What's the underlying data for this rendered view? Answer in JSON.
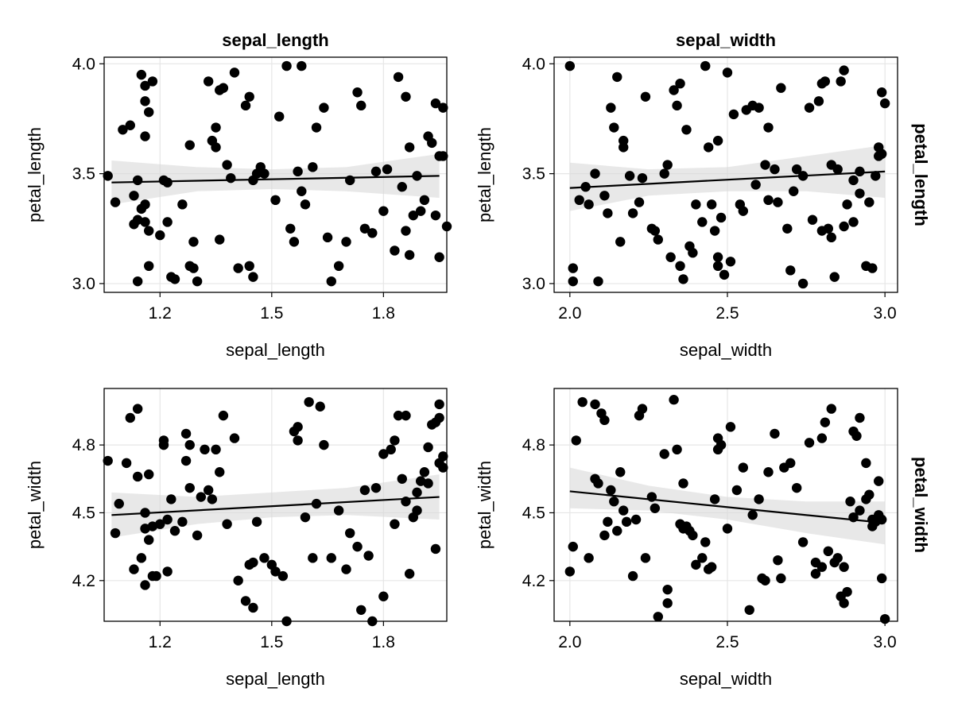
{
  "chart_data": [
    {
      "type": "scatter",
      "panel": "sepal_length-petal_length",
      "col_title": "sepal_length",
      "row_title": "",
      "xlabel": "sepal_length",
      "ylabel": "petal_length",
      "xlim": [
        1.05,
        1.97
      ],
      "ylim": [
        2.96,
        4.03
      ],
      "xticks": [
        1.2,
        1.5,
        1.8
      ],
      "xtick_labels": [
        "1.2",
        "1.5",
        "1.8"
      ],
      "yticks": [
        3.0,
        3.5,
        4.0
      ],
      "ytick_labels": [
        "3.0",
        "3.5",
        "4.0"
      ],
      "grid": true,
      "fit": {
        "x0": 1.07,
        "y0": 3.46,
        "x1": 1.95,
        "y1": 3.49
      },
      "band": [
        {
          "x": 1.07,
          "lo": 3.36,
          "hi": 3.56
        },
        {
          "x": 1.3,
          "lo": 3.42,
          "hi": 3.53
        },
        {
          "x": 1.5,
          "lo": 3.43,
          "hi": 3.52
        },
        {
          "x": 1.7,
          "lo": 3.42,
          "hi": 3.53
        },
        {
          "x": 1.95,
          "lo": 3.39,
          "hi": 3.59
        }
      ],
      "x": [
        1.06,
        1.08,
        1.1,
        1.12,
        1.14,
        1.16,
        1.17,
        1.18,
        1.15,
        1.16,
        1.15,
        1.16,
        1.17,
        1.13,
        1.13,
        1.14,
        1.17,
        1.16,
        1.16,
        1.14,
        1.2,
        1.21,
        1.22,
        1.22,
        1.23,
        1.24,
        1.26,
        1.28,
        1.29,
        1.3,
        1.29,
        1.28,
        1.33,
        1.35,
        1.34,
        1.35,
        1.36,
        1.37,
        1.39,
        1.36,
        1.38,
        1.4,
        1.41,
        1.43,
        1.44,
        1.45,
        1.46,
        1.44,
        1.45,
        1.47,
        1.48,
        1.51,
        1.52,
        1.54,
        1.55,
        1.56,
        1.57,
        1.59,
        1.58,
        1.58,
        1.61,
        1.62,
        1.64,
        1.65,
        1.66,
        1.68,
        1.7,
        1.71,
        1.73,
        1.74,
        1.75,
        1.77,
        1.78,
        1.8,
        1.81,
        1.83,
        1.84,
        1.86,
        1.87,
        1.86,
        1.85,
        1.87,
        1.88,
        1.89,
        1.9,
        1.91,
        1.92,
        1.93,
        1.94,
        1.94,
        1.95,
        1.96,
        1.96,
        1.97,
        1.95
      ],
      "y": [
        3.49,
        3.37,
        3.7,
        3.72,
        3.47,
        3.36,
        3.08,
        3.92,
        3.95,
        3.9,
        3.34,
        3.28,
        3.24,
        3.4,
        3.27,
        3.29,
        3.78,
        3.67,
        3.83,
        3.01,
        3.22,
        3.47,
        3.46,
        3.28,
        3.03,
        3.02,
        3.36,
        3.08,
        3.07,
        3.01,
        3.19,
        3.63,
        3.92,
        3.71,
        3.65,
        3.62,
        3.2,
        3.89,
        3.48,
        3.88,
        3.54,
        3.96,
        3.07,
        3.81,
        3.08,
        3.03,
        3.5,
        3.85,
        3.47,
        3.53,
        3.5,
        3.38,
        3.76,
        3.99,
        3.25,
        3.19,
        3.51,
        3.36,
        3.42,
        3.99,
        3.53,
        3.71,
        3.8,
        3.21,
        3.01,
        3.08,
        3.19,
        3.47,
        3.87,
        3.81,
        3.25,
        3.23,
        3.51,
        3.33,
        3.52,
        3.15,
        3.94,
        3.24,
        3.13,
        3.85,
        3.44,
        3.62,
        3.31,
        3.49,
        3.33,
        3.38,
        3.67,
        3.64,
        3.82,
        3.31,
        3.58,
        3.8,
        3.58,
        3.26,
        3.12
      ]
    },
    {
      "type": "scatter",
      "panel": "sepal_width-petal_length",
      "col_title": "sepal_width",
      "row_title": "petal_length",
      "xlabel": "sepal_width",
      "ylabel": "petal_length",
      "xlim": [
        1.95,
        3.04
      ],
      "ylim": [
        2.96,
        4.03
      ],
      "xticks": [
        2.0,
        2.5,
        3.0
      ],
      "xtick_labels": [
        "2.0",
        "2.5",
        "3.0"
      ],
      "yticks": [
        3.0,
        3.5,
        4.0
      ],
      "ytick_labels": [
        "3.0",
        "3.5",
        "4.0"
      ],
      "grid": true,
      "fit": {
        "x0": 2.0,
        "y0": 3.435,
        "x1": 3.0,
        "y1": 3.51
      },
      "band": [
        {
          "x": 2.0,
          "lo": 3.33,
          "hi": 3.55
        },
        {
          "x": 2.25,
          "lo": 3.4,
          "hi": 3.52
        },
        {
          "x": 2.5,
          "lo": 3.42,
          "hi": 3.53
        },
        {
          "x": 2.75,
          "lo": 3.42,
          "hi": 3.58
        },
        {
          "x": 3.0,
          "lo": 3.39,
          "hi": 3.63
        }
      ],
      "x": [
        2.0,
        2.01,
        2.01,
        2.03,
        2.05,
        2.06,
        2.08,
        2.09,
        2.11,
        2.12,
        2.13,
        2.14,
        2.15,
        2.17,
        2.16,
        2.17,
        2.19,
        2.2,
        2.22,
        2.23,
        2.24,
        2.26,
        2.27,
        2.28,
        2.3,
        2.31,
        2.32,
        2.33,
        2.34,
        2.35,
        2.35,
        2.36,
        2.37,
        2.38,
        2.39,
        2.4,
        2.43,
        2.44,
        2.45,
        2.46,
        2.47,
        2.47,
        2.48,
        2.49,
        2.5,
        2.52,
        2.54,
        2.56,
        2.58,
        2.6,
        2.62,
        2.63,
        2.65,
        2.67,
        2.69,
        2.7,
        2.72,
        2.74,
        2.76,
        2.79,
        2.8,
        2.81,
        2.82,
        2.83,
        2.84,
        2.85,
        2.86,
        2.87,
        2.88,
        2.9,
        2.92,
        2.94,
        2.96,
        2.98,
        2.99,
        3.0,
        2.99,
        2.98,
        2.97,
        2.95,
        2.92,
        2.9,
        2.87,
        2.83,
        2.8,
        2.77,
        2.74,
        2.71,
        2.66,
        2.63,
        2.59,
        2.55,
        2.51,
        2.47,
        2.42
      ],
      "y": [
        3.99,
        3.01,
        3.07,
        3.38,
        3.44,
        3.36,
        3.5,
        3.01,
        3.4,
        3.32,
        3.8,
        3.71,
        3.94,
        3.65,
        3.19,
        3.62,
        3.49,
        3.32,
        3.37,
        3.48,
        3.85,
        3.25,
        3.24,
        3.2,
        3.5,
        3.54,
        3.12,
        3.88,
        3.81,
        3.91,
        3.08,
        3.02,
        3.7,
        3.17,
        3.14,
        3.36,
        3.99,
        3.62,
        3.36,
        3.24,
        3.65,
        3.08,
        3.3,
        3.04,
        3.96,
        3.77,
        3.36,
        3.79,
        3.81,
        3.8,
        3.54,
        3.71,
        3.52,
        3.89,
        3.25,
        3.06,
        3.52,
        3.0,
        3.8,
        3.83,
        3.91,
        3.92,
        3.25,
        3.54,
        3.03,
        3.52,
        3.92,
        3.97,
        3.36,
        3.28,
        3.51,
        3.08,
        3.07,
        3.62,
        3.87,
        3.82,
        3.59,
        3.58,
        3.49,
        3.37,
        3.41,
        3.47,
        3.26,
        3.21,
        3.24,
        3.29,
        3.49,
        3.42,
        3.37,
        3.38,
        3.45,
        3.33,
        3.1,
        3.12,
        3.28
      ]
    },
    {
      "type": "scatter",
      "panel": "sepal_length-petal_width",
      "col_title": "",
      "row_title": "",
      "xlabel": "sepal_length",
      "ylabel": "petal_width",
      "xlim": [
        1.05,
        1.97
      ],
      "ylim": [
        4.02,
        5.05
      ],
      "xticks": [
        1.2,
        1.5,
        1.8
      ],
      "xtick_labels": [
        "1.2",
        "1.5",
        "1.8"
      ],
      "yticks": [
        4.2,
        4.5,
        4.8
      ],
      "ytick_labels": [
        "4.2",
        "4.5",
        "4.8"
      ],
      "grid": true,
      "fit": {
        "x0": 1.07,
        "y0": 4.49,
        "x1": 1.95,
        "y1": 4.57
      },
      "band": [
        {
          "x": 1.07,
          "lo": 4.39,
          "hi": 4.59
        },
        {
          "x": 1.3,
          "lo": 4.45,
          "hi": 4.57
        },
        {
          "x": 1.5,
          "lo": 4.48,
          "hi": 4.59
        },
        {
          "x": 1.7,
          "lo": 4.49,
          "hi": 4.61
        },
        {
          "x": 1.95,
          "lo": 4.47,
          "hi": 4.67
        }
      ],
      "x": [
        1.06,
        1.08,
        1.09,
        1.11,
        1.12,
        1.13,
        1.14,
        1.14,
        1.15,
        1.16,
        1.16,
        1.16,
        1.17,
        1.17,
        1.18,
        1.18,
        1.19,
        1.2,
        1.21,
        1.21,
        1.22,
        1.22,
        1.23,
        1.24,
        1.26,
        1.27,
        1.27,
        1.28,
        1.28,
        1.3,
        1.31,
        1.32,
        1.33,
        1.34,
        1.35,
        1.36,
        1.37,
        1.38,
        1.4,
        1.41,
        1.43,
        1.44,
        1.45,
        1.45,
        1.46,
        1.48,
        1.5,
        1.51,
        1.53,
        1.54,
        1.56,
        1.57,
        1.57,
        1.59,
        1.6,
        1.61,
        1.62,
        1.63,
        1.64,
        1.66,
        1.68,
        1.7,
        1.71,
        1.73,
        1.74,
        1.76,
        1.78,
        1.8,
        1.82,
        1.83,
        1.84,
        1.85,
        1.86,
        1.87,
        1.88,
        1.89,
        1.9,
        1.91,
        1.92,
        1.93,
        1.94,
        1.95,
        1.95,
        1.96,
        1.96,
        1.95,
        1.94,
        1.92,
        1.89,
        1.86,
        1.83,
        1.8,
        1.77,
        1.75
      ],
      "y": [
        4.73,
        4.41,
        4.54,
        4.72,
        4.92,
        4.25,
        4.66,
        4.96,
        4.3,
        4.18,
        4.5,
        4.43,
        4.67,
        4.38,
        4.44,
        4.22,
        4.22,
        4.45,
        4.8,
        4.82,
        4.47,
        4.24,
        4.56,
        4.42,
        4.46,
        4.85,
        4.73,
        4.61,
        4.8,
        4.4,
        4.57,
        4.78,
        4.6,
        4.56,
        4.78,
        4.68,
        4.93,
        4.45,
        4.83,
        4.2,
        4.11,
        4.27,
        4.28,
        4.08,
        4.46,
        4.3,
        4.27,
        4.24,
        4.22,
        4.02,
        4.86,
        4.88,
        4.82,
        4.48,
        4.99,
        4.3,
        4.54,
        4.97,
        4.8,
        4.3,
        4.51,
        4.25,
        4.41,
        4.35,
        4.07,
        4.31,
        4.61,
        4.76,
        4.78,
        4.82,
        4.93,
        4.65,
        4.93,
        4.23,
        4.48,
        4.51,
        4.64,
        4.68,
        4.79,
        4.89,
        4.9,
        4.92,
        4.98,
        4.75,
        4.7,
        4.72,
        4.34,
        4.63,
        4.59,
        4.55,
        4.45,
        4.13,
        4.02,
        4.6
      ]
    },
    {
      "type": "scatter",
      "panel": "sepal_width-petal_width",
      "col_title": "",
      "row_title": "petal_width",
      "xlabel": "sepal_width",
      "ylabel": "petal_width",
      "xlim": [
        1.95,
        3.04
      ],
      "ylim": [
        4.02,
        5.05
      ],
      "xticks": [
        2.0,
        2.5,
        3.0
      ],
      "xtick_labels": [
        "2.0",
        "2.5",
        "3.0"
      ],
      "yticks": [
        4.2,
        4.5,
        4.8
      ],
      "ytick_labels": [
        "4.2",
        "4.5",
        "4.8"
      ],
      "grid": true,
      "fit": {
        "x0": 2.0,
        "y0": 4.595,
        "x1": 3.0,
        "y1": 4.455
      },
      "band": [
        {
          "x": 2.0,
          "lo": 4.52,
          "hi": 4.7
        },
        {
          "x": 2.25,
          "lo": 4.51,
          "hi": 4.62
        },
        {
          "x": 2.5,
          "lo": 4.47,
          "hi": 4.57
        },
        {
          "x": 2.75,
          "lo": 4.41,
          "hi": 4.55
        },
        {
          "x": 3.0,
          "lo": 4.36,
          "hi": 4.55
        }
      ],
      "x": [
        2.0,
        2.01,
        2.02,
        2.04,
        2.06,
        2.08,
        2.1,
        2.11,
        2.08,
        2.09,
        2.11,
        2.12,
        2.13,
        2.14,
        2.15,
        2.16,
        2.17,
        2.18,
        2.2,
        2.21,
        2.22,
        2.23,
        2.24,
        2.26,
        2.27,
        2.28,
        2.3,
        2.31,
        2.31,
        2.33,
        2.34,
        2.35,
        2.36,
        2.36,
        2.37,
        2.38,
        2.39,
        2.4,
        2.42,
        2.43,
        2.44,
        2.45,
        2.46,
        2.47,
        2.47,
        2.48,
        2.5,
        2.51,
        2.53,
        2.55,
        2.57,
        2.58,
        2.6,
        2.61,
        2.62,
        2.63,
        2.65,
        2.66,
        2.67,
        2.68,
        2.7,
        2.72,
        2.74,
        2.76,
        2.78,
        2.8,
        2.81,
        2.83,
        2.85,
        2.86,
        2.87,
        2.88,
        2.89,
        2.9,
        2.91,
        2.92,
        2.94,
        2.95,
        2.96,
        2.97,
        2.98,
        2.99,
        3.0,
        2.99,
        2.98,
        2.96,
        2.94,
        2.92,
        2.9,
        2.87,
        2.84,
        2.82,
        2.8,
        2.78
      ],
      "y": [
        4.24,
        4.35,
        4.82,
        4.99,
        4.3,
        4.65,
        4.94,
        4.91,
        4.98,
        4.63,
        4.4,
        4.46,
        4.6,
        4.55,
        4.42,
        4.68,
        4.51,
        4.46,
        4.22,
        4.47,
        4.93,
        4.96,
        4.3,
        4.57,
        4.52,
        4.04,
        4.76,
        4.16,
        4.1,
        5.0,
        4.78,
        4.45,
        4.63,
        4.43,
        4.44,
        4.42,
        4.4,
        4.27,
        4.3,
        4.37,
        4.25,
        4.26,
        4.56,
        4.78,
        4.83,
        4.8,
        4.43,
        4.88,
        4.6,
        4.7,
        4.07,
        4.49,
        4.56,
        4.21,
        4.2,
        4.68,
        4.85,
        4.29,
        4.21,
        4.7,
        4.72,
        4.61,
        4.37,
        4.81,
        4.28,
        4.83,
        4.9,
        4.96,
        4.3,
        4.13,
        4.1,
        4.15,
        4.55,
        4.86,
        4.84,
        4.92,
        4.72,
        4.58,
        4.47,
        4.46,
        4.64,
        4.21,
        4.03,
        4.47,
        4.49,
        4.44,
        4.56,
        4.51,
        4.48,
        4.26,
        4.28,
        4.33,
        4.26,
        4.23
      ]
    }
  ]
}
